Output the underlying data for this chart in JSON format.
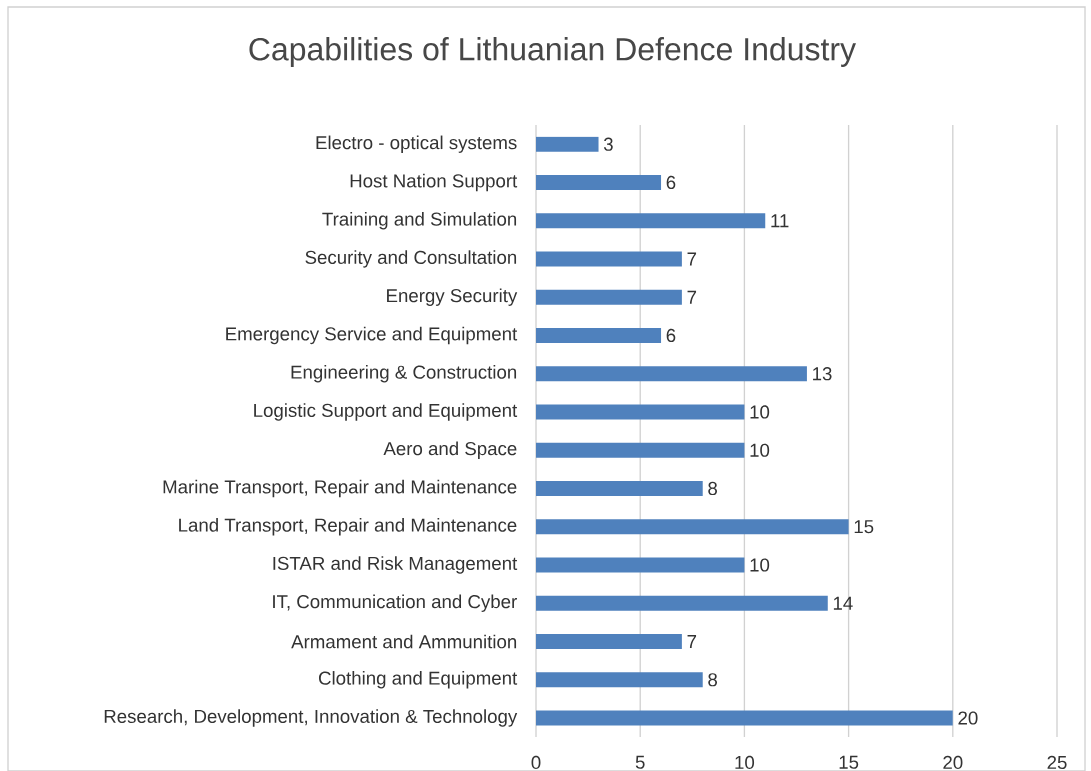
{
  "chart_data": {
    "type": "bar",
    "orientation": "horizontal",
    "title": "Capabilities of Lithuanian Defence Industry",
    "categories": [
      "Electro - optical systems",
      "Host Nation Support",
      "Training and Simulation",
      "Security and Consultation",
      "Energy Security",
      "Emergency Service and Equipment",
      "Engineering & Construction",
      "Logistic Support and Equipment",
      "Aero and Space",
      "Marine Transport, Repair and Maintenance",
      "Land Transport, Repair and Maintenance",
      "ISTAR and Risk Management",
      "IT, Communication and Cyber",
      "Armament and Ammunition",
      "Clothing and Equipment",
      "Research, Development, Innovation & Technology"
    ],
    "values": [
      3,
      6,
      11,
      7,
      7,
      6,
      13,
      10,
      10,
      8,
      15,
      10,
      14,
      7,
      8,
      20
    ],
    "color": "#4f81bd",
    "xlim": [
      0,
      25
    ],
    "xticks": [
      0,
      5,
      10,
      15,
      20,
      25
    ],
    "grid": "x",
    "data_labels": true
  }
}
